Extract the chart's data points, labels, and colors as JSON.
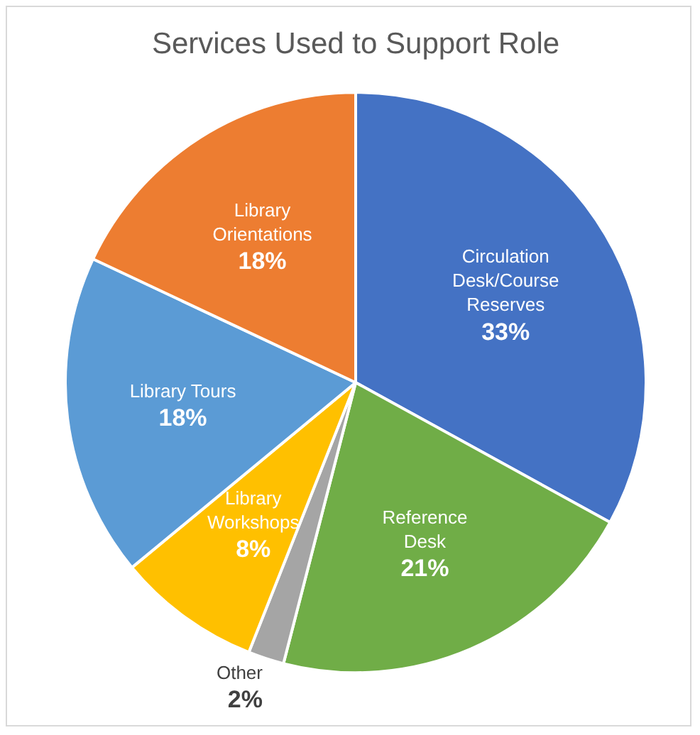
{
  "chart_data": {
    "type": "pie",
    "title": "Services Used to Support Role",
    "categories": [
      "Circulation Desk/Course Reserves",
      "Reference Desk",
      "Other",
      "Library Workshops",
      "Library Tours",
      "Library Orientations"
    ],
    "values": [
      33,
      21,
      2,
      8,
      18,
      18
    ],
    "colors": [
      "#4472c4",
      "#70ad47",
      "#a5a5a5",
      "#ffc000",
      "#5b9bd5",
      "#ed7d31"
    ],
    "value_labels": [
      "33%",
      "21%",
      "2%",
      "8%",
      "18%",
      "18%"
    ],
    "legend": false
  }
}
